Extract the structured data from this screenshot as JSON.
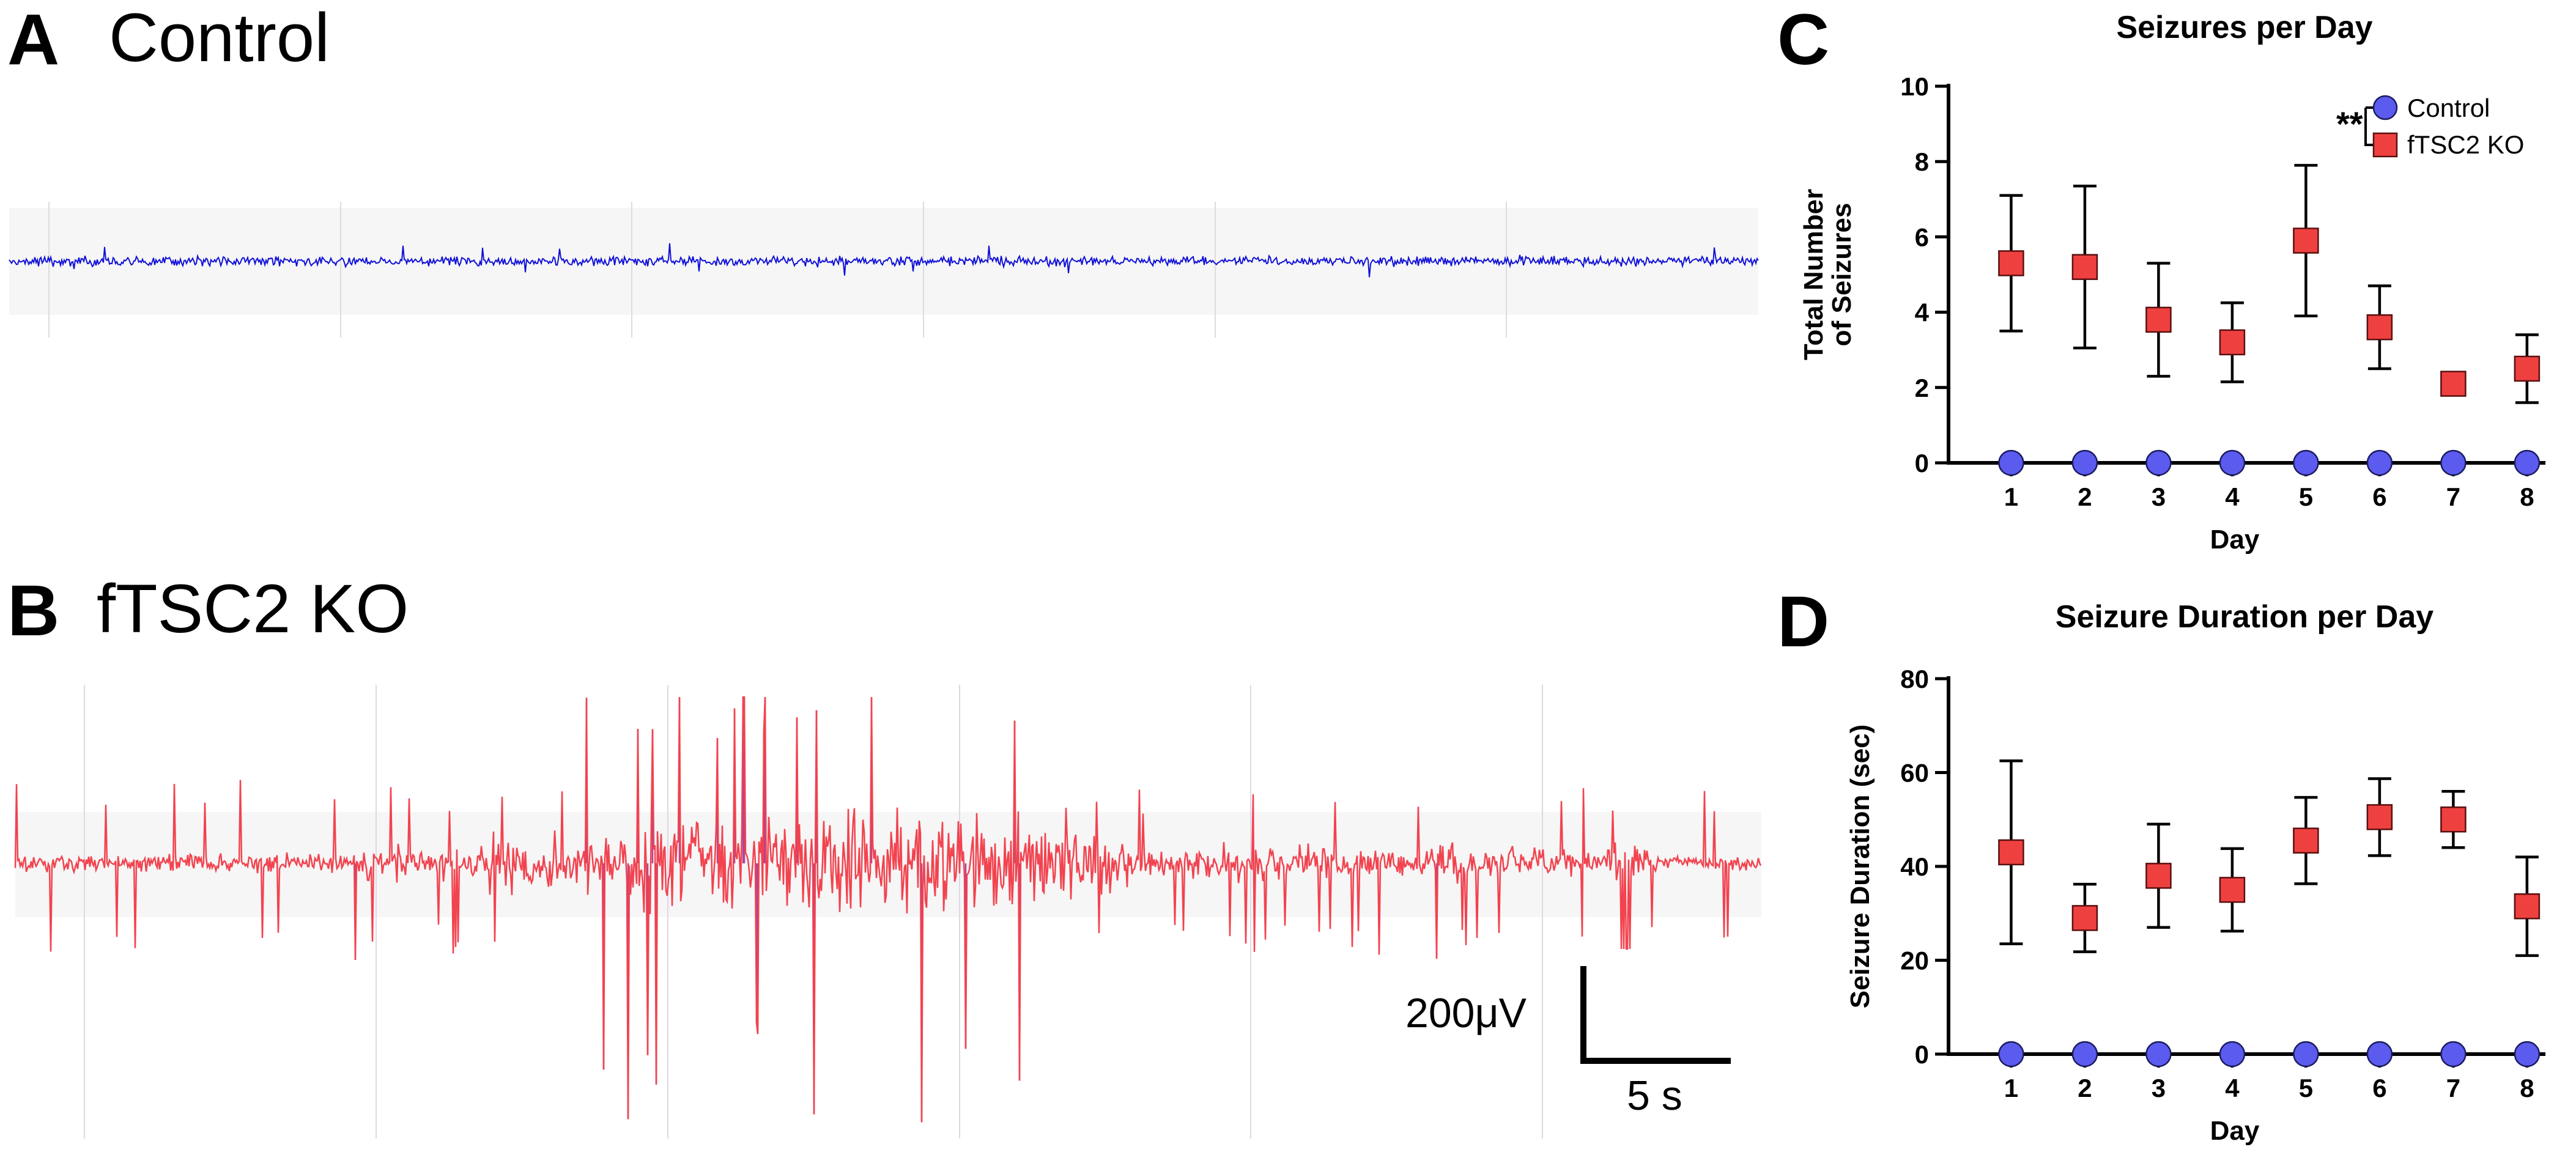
{
  "panels": {
    "a": {
      "letter": "A",
      "title": "Control"
    },
    "b": {
      "letter": "B",
      "title": "fTSC2 KO"
    },
    "c": {
      "letter": "C"
    },
    "d": {
      "letter": "D"
    }
  },
  "traces": {
    "control_color": "#1010d8",
    "ko_color": "#f2434f",
    "ko_spike_color": "#b0449a",
    "scalebar": {
      "amplitude_label": "200μV",
      "time_label": "5 s"
    }
  },
  "significance": "**",
  "chart_data": [
    {
      "type": "scatter",
      "title": "Seizures per Day",
      "xlabel": "Day",
      "ylabel_lines": [
        "Total Number",
        "of Seizures"
      ],
      "categories": [
        "1",
        "2",
        "3",
        "4",
        "5",
        "6",
        "7",
        "8"
      ],
      "yticks": [
        "0",
        "2",
        "4",
        "6",
        "8",
        "10"
      ],
      "ylim": [
        0,
        10
      ],
      "legend_position": "top-right",
      "series": [
        {
          "name": "Control",
          "marker": "circle",
          "color": "#5b5bef",
          "values": [
            0,
            0,
            0,
            0,
            0,
            0,
            0,
            0
          ],
          "error": [
            0,
            0,
            0,
            0,
            0,
            0,
            0,
            0
          ]
        },
        {
          "name": "fTSC2 KO",
          "marker": "square",
          "color": "#ef4040",
          "values": [
            5.3,
            5.2,
            3.8,
            3.2,
            5.9,
            3.6,
            2.1,
            2.5
          ],
          "error": [
            1.8,
            2.15,
            1.5,
            1.05,
            2.0,
            1.1,
            0.2,
            0.9
          ]
        }
      ]
    },
    {
      "type": "scatter",
      "title": "Seizure Duration per Day",
      "xlabel": "Day",
      "ylabel_lines": [
        "Seizure Duration (sec)"
      ],
      "categories": [
        "1",
        "2",
        "3",
        "4",
        "5",
        "6",
        "7",
        "8"
      ],
      "yticks": [
        "0",
        "20",
        "40",
        "60",
        "80"
      ],
      "ylim": [
        0,
        80
      ],
      "series": [
        {
          "name": "Control",
          "marker": "circle",
          "color": "#5b5bef",
          "values": [
            0,
            0,
            0,
            0,
            0,
            0,
            0,
            0
          ],
          "error": [
            0,
            0,
            0,
            0,
            0,
            0,
            0,
            0
          ]
        },
        {
          "name": "fTSC2 KO",
          "marker": "square",
          "color": "#ef4040",
          "values": [
            43,
            29,
            38,
            35,
            45.5,
            50.5,
            50,
            31.5
          ],
          "error": [
            19.5,
            7.2,
            11,
            8.8,
            9.2,
            8.2,
            6,
            10.5
          ]
        }
      ]
    }
  ]
}
